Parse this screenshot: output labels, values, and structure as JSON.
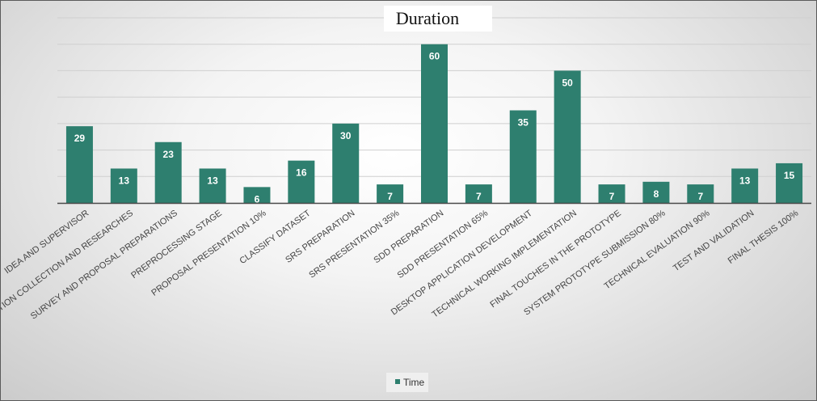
{
  "chart_data": {
    "type": "bar",
    "title": "Duration",
    "xlabel": "",
    "ylabel": "",
    "ylim": [
      0,
      70
    ],
    "grid": true,
    "legend_position": "bottom",
    "bar_color": "#2e7f6f",
    "categories": [
      "IDEA AND SUPERVISOR",
      "INFORMATION COLLECTION AND RESEARCHES",
      "SURVEY AND PROPOSAL PREPARATIONS",
      "PREPROCESSING STAGE",
      "PROPOSAL PRESENTATION 10%",
      "CLASSIFY DATASET",
      "SRS PREPARATION",
      "SRS PRESENTATION 35%",
      "SDD PREPARATION",
      "SDD PRESENTATION 65%",
      "DESKTOP APPLICATION DEVELOPMENT",
      "TECHNICAL WORKING IMPLEMENTATION",
      "FINAL TOUCHES IN THE PROTOTYPE",
      "SYSTEM PROTOTYPE SUBMISSION 80%",
      "TECHNICAL EVALUATION 90%",
      "TEST AND VALIDATION",
      "FINAL THESIS 100%"
    ],
    "series": [
      {
        "name": "Time",
        "values": [
          29,
          13,
          23,
          13,
          6,
          16,
          30,
          7,
          60,
          7,
          35,
          50,
          7,
          8,
          7,
          13,
          15
        ]
      }
    ]
  }
}
